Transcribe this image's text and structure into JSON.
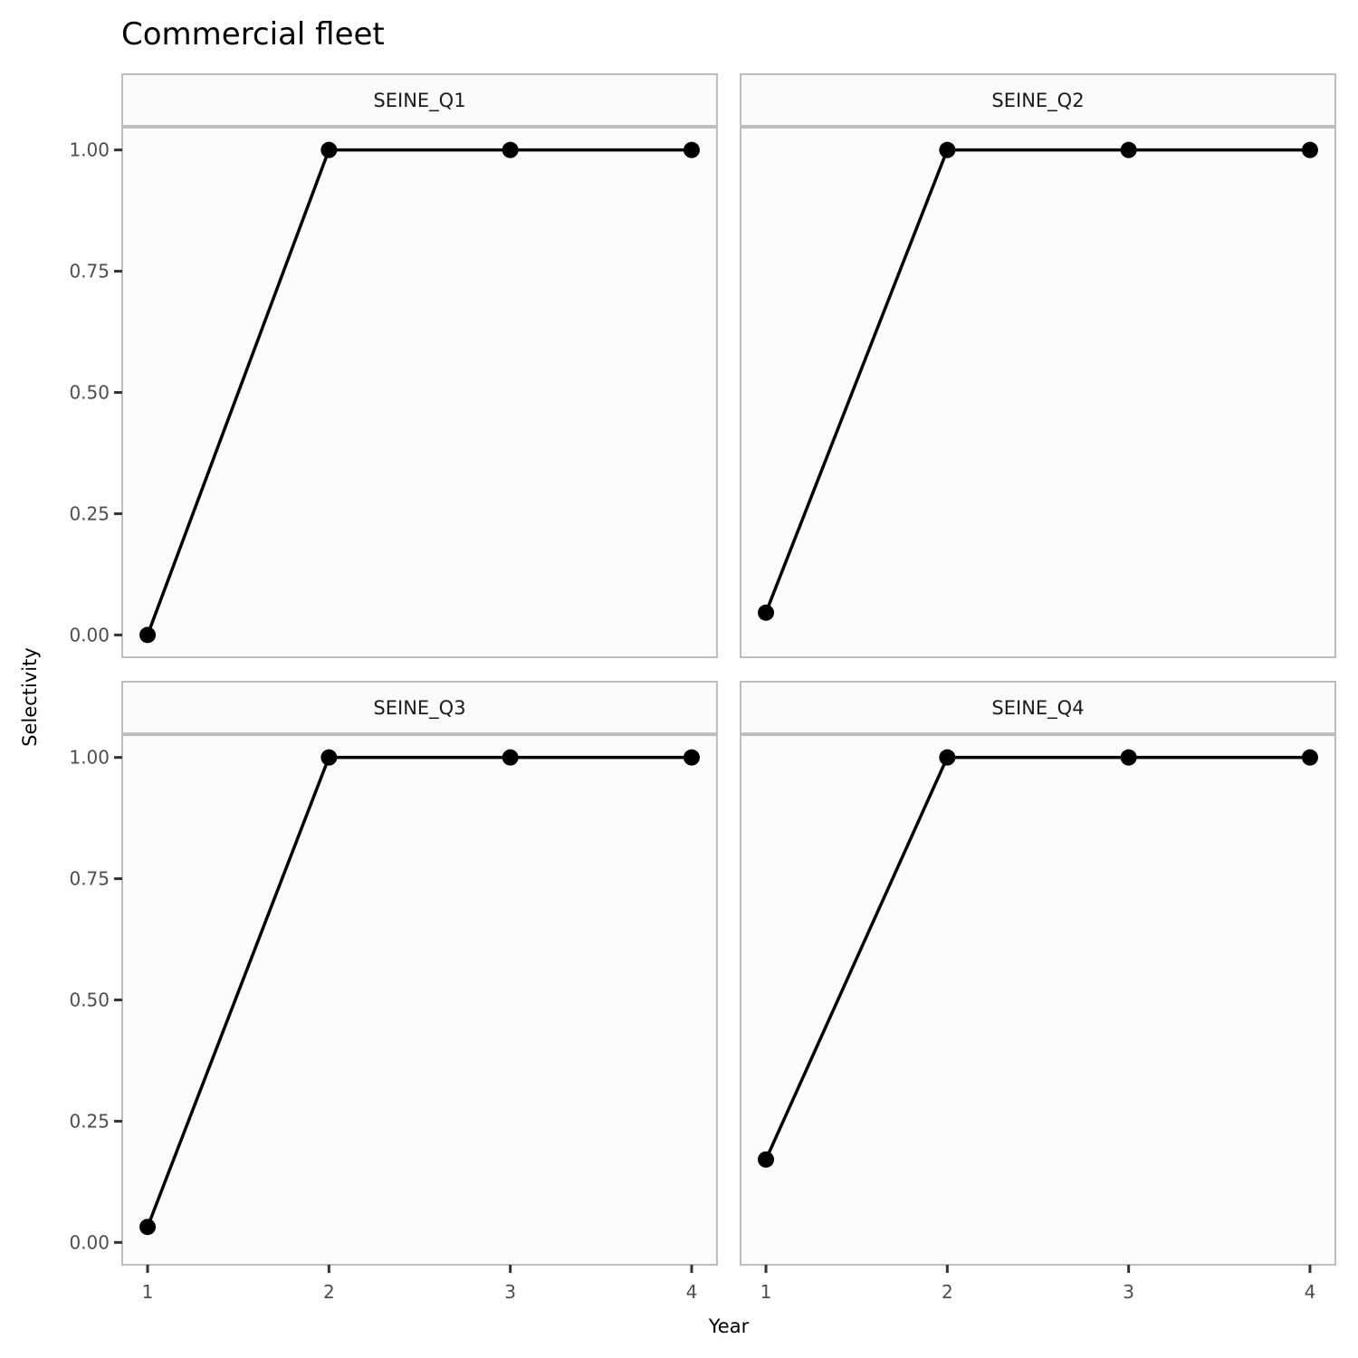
{
  "chart_data": {
    "type": "line",
    "title": "Commercial fleet",
    "xlabel": "Year",
    "ylabel": "Selectivity",
    "x_ticks": [
      1,
      2,
      3,
      4
    ],
    "y_ticks": [
      0,
      0.25,
      0.5,
      0.75,
      1
    ],
    "y_tick_labels": [
      "0.00",
      "0.25",
      "0.50",
      "0.75",
      "1.00"
    ],
    "xlim": [
      0.86,
      4.14
    ],
    "ylim": [
      -0.046,
      1.046
    ],
    "grid": false,
    "line_color": "#000000",
    "panel_background": "#fcfcfc",
    "strip_background": "#fafafa",
    "border_color": "#bdbdbd",
    "panels": [
      {
        "strip": "SEINE_Q1",
        "x": [
          1,
          2,
          3,
          4
        ],
        "values": [
          0.0,
          1.0,
          1.0,
          1.0
        ]
      },
      {
        "strip": "SEINE_Q2",
        "x": [
          1,
          2,
          3,
          4
        ],
        "values": [
          0.046,
          1.0,
          1.0,
          1.0
        ]
      },
      {
        "strip": "SEINE_Q3",
        "x": [
          1,
          2,
          3,
          4
        ],
        "values": [
          0.032,
          1.0,
          1.0,
          1.0
        ]
      },
      {
        "strip": "SEINE_Q4",
        "x": [
          1,
          2,
          3,
          4
        ],
        "values": [
          0.171,
          1.0,
          1.0,
          1.0
        ]
      }
    ]
  }
}
